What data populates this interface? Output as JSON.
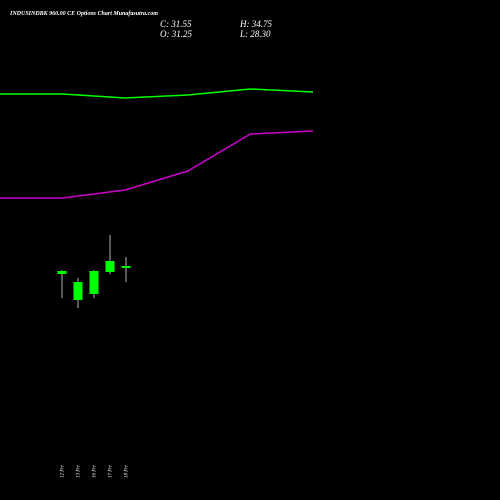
{
  "chart_data": {
    "type": "candlestick",
    "title": "INDUSINDBK 960.00 CE Options Chart Munafasutra.com",
    "summary": {
      "close_label": "C: 31.55",
      "high_label": "H: 34.75",
      "open_label": "O: 31.25",
      "low_label": "L: 28.30"
    },
    "categories": [
      "12 Fri",
      "13 Fri",
      "16 Fri",
      "17 Fri",
      "18 Fri"
    ],
    "candles": [
      {
        "date": "12 Fri",
        "open": 27.9,
        "high": 28.0,
        "low": 25.2,
        "close": 27.6
      },
      {
        "date": "13 Fri",
        "open": 26.8,
        "high": 27.2,
        "low": 24.2,
        "close": 25.0
      },
      {
        "date": "16 Fri",
        "open": 25.6,
        "high": 28.0,
        "low": 25.2,
        "close": 27.9
      },
      {
        "date": "17 Fri",
        "open": 27.8,
        "high": 31.5,
        "low": 27.6,
        "close": 28.9
      },
      {
        "date": "18 Fri",
        "open": 28.2,
        "high": 29.3,
        "low": 26.8,
        "close": 28.4
      }
    ],
    "series": [
      {
        "color": "#00ff00",
        "x": [
          0,
          1,
          2,
          3,
          4,
          5
        ],
        "values": [
          45.6,
          45.6,
          45.2,
          45.5,
          46.1,
          45.8
        ]
      },
      {
        "color": "#cc00cc",
        "x": [
          0,
          1,
          2,
          3,
          4,
          5
        ],
        "values": [
          35.2,
          35.2,
          36.0,
          37.9,
          41.6,
          41.9
        ]
      }
    ],
    "ylim": [
      18.0,
      50.0
    ],
    "colors": {
      "background": "#000000",
      "candle": "#00ff00",
      "wick": "#ffffff"
    },
    "grid": false
  }
}
